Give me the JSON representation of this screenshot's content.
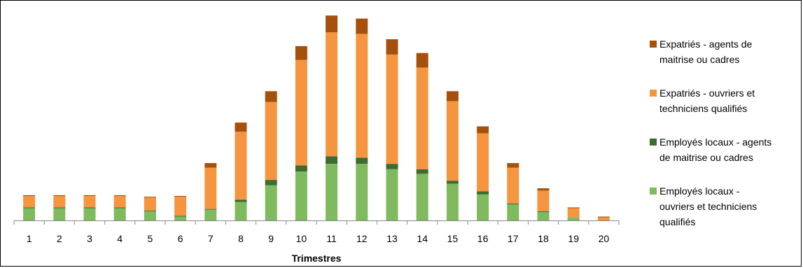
{
  "chart_data": {
    "type": "bar",
    "stacked": true,
    "title": "",
    "xlabel": "Trimestres",
    "ylabel": "",
    "categories": [
      "1",
      "2",
      "3",
      "4",
      "5",
      "6",
      "7",
      "8",
      "9",
      "10",
      "11",
      "12",
      "13",
      "14",
      "15",
      "16",
      "17",
      "18",
      "19",
      "20"
    ],
    "series": [
      {
        "name": "Employés locaux - ouvriers et techniciens qualifiés",
        "color": "#7fba5f",
        "values": [
          16,
          16,
          16,
          16,
          12,
          5,
          14,
          24,
          46,
          64,
          74,
          74,
          67,
          61,
          48,
          34,
          21,
          11,
          4,
          0
        ]
      },
      {
        "name": "Employés locaux - agents de maitrise ou cadres",
        "color": "#3e6b30",
        "values": [
          1,
          1,
          1,
          1,
          1,
          1,
          1,
          3,
          7,
          8,
          10,
          8,
          7,
          6,
          4,
          4,
          1,
          1,
          0,
          0
        ]
      },
      {
        "name": "Expatriés - ouvriers et techniciens qualifiés",
        "color": "#f5953f",
        "values": [
          15,
          15,
          15,
          15,
          17,
          25,
          54,
          89,
          102,
          138,
          162,
          162,
          143,
          133,
          104,
          76,
          47,
          27,
          12,
          4
        ]
      },
      {
        "name": "Expatriés - agents de maitrise ou cadres",
        "color": "#a5500c",
        "values": [
          1,
          1,
          1,
          1,
          1,
          1,
          6,
          12,
          14,
          18,
          22,
          20,
          20,
          19,
          13,
          9,
          6,
          3,
          1,
          1
        ]
      }
    ],
    "ylim": [
      0,
      270
    ],
    "grid": false,
    "legend": "right"
  }
}
